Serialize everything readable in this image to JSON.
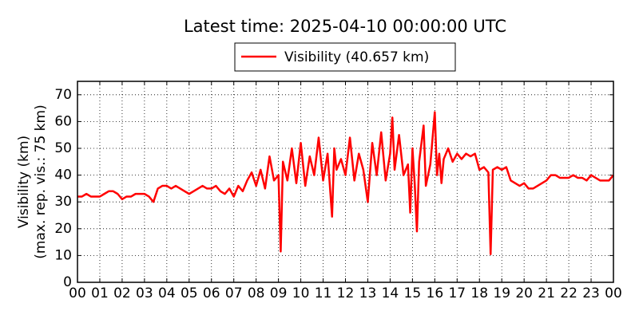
{
  "chart_data": {
    "type": "line",
    "title": "Latest time: 2025-04-10 00:00:00 UTC",
    "ylabel": [
      "Visibility (km)",
      "(max. rep. vis.: 75 km)"
    ],
    "series": [
      {
        "name": "Visibility (40.657 km)",
        "color": "#ff0000",
        "x": [
          0,
          0.2,
          0.4,
          0.6,
          0.8,
          1,
          1.2,
          1.4,
          1.6,
          1.8,
          2,
          2.2,
          2.4,
          2.6,
          2.8,
          3,
          3.2,
          3.4,
          3.6,
          3.8,
          4,
          4.2,
          4.4,
          4.6,
          4.8,
          5,
          5.2,
          5.4,
          5.6,
          5.8,
          6,
          6.2,
          6.4,
          6.6,
          6.8,
          7,
          7.2,
          7.4,
          7.6,
          7.8,
          8,
          8.2,
          8.4,
          8.6,
          8.8,
          9,
          9.1,
          9.2,
          9.4,
          9.6,
          9.8,
          10,
          10.2,
          10.4,
          10.6,
          10.8,
          11,
          11.2,
          11.4,
          11.5,
          11.6,
          11.8,
          12,
          12.2,
          12.4,
          12.6,
          12.8,
          13,
          13.2,
          13.4,
          13.6,
          13.8,
          14,
          14.1,
          14.2,
          14.4,
          14.6,
          14.8,
          14.9,
          15,
          15.1,
          15.2,
          15.3,
          15.5,
          15.6,
          15.8,
          16,
          16.1,
          16.2,
          16.3,
          16.4,
          16.6,
          16.8,
          17,
          17.2,
          17.4,
          17.6,
          17.8,
          18,
          18.2,
          18.4,
          18.5,
          18.6,
          18.8,
          19,
          19.2,
          19.4,
          19.6,
          19.8,
          20,
          20.2,
          20.4,
          20.6,
          20.8,
          21,
          21.2,
          21.4,
          21.6,
          21.8,
          22,
          22.2,
          22.4,
          22.6,
          22.8,
          23,
          23.2,
          23.4,
          23.6,
          23.8,
          24
        ],
        "values": [
          32,
          32,
          33,
          32,
          32,
          32,
          33,
          34,
          34,
          33,
          31,
          32,
          32,
          33,
          33,
          33,
          32,
          30,
          35,
          36,
          36,
          35,
          36,
          35,
          34,
          33,
          34,
          35,
          36,
          35,
          35,
          36,
          34,
          33,
          35,
          32,
          36,
          34,
          38,
          41,
          36,
          42,
          35,
          47,
          38,
          40,
          11.5,
          45,
          38,
          50,
          37,
          52,
          36,
          47,
          40,
          54,
          38,
          48,
          24.5,
          50,
          42,
          46,
          40,
          54,
          38,
          48,
          42,
          30,
          52,
          40,
          56,
          38,
          48,
          61.5,
          42,
          55,
          40,
          44,
          26,
          50,
          37,
          19,
          45,
          58.5,
          36,
          44,
          63.5,
          40,
          48,
          37,
          46,
          50,
          45,
          48,
          46,
          48,
          47,
          48,
          42,
          43,
          41,
          10.5,
          42,
          43,
          42,
          43,
          38,
          37,
          36,
          37,
          35,
          35,
          36,
          37,
          38,
          40,
          40,
          39,
          39,
          39,
          40,
          39,
          39,
          38,
          40,
          39,
          38,
          38,
          38,
          40
        ]
      }
    ],
    "xlim": [
      0,
      24
    ],
    "xticks": [
      {
        "value": 0,
        "label": "00"
      },
      {
        "value": 1,
        "label": "01"
      },
      {
        "value": 2,
        "label": "02"
      },
      {
        "value": 3,
        "label": "03"
      },
      {
        "value": 4,
        "label": "04"
      },
      {
        "value": 5,
        "label": "05"
      },
      {
        "value": 6,
        "label": "06"
      },
      {
        "value": 7,
        "label": "07"
      },
      {
        "value": 8,
        "label": "08"
      },
      {
        "value": 9,
        "label": "09"
      },
      {
        "value": 10,
        "label": "10"
      },
      {
        "value": 11,
        "label": "11"
      },
      {
        "value": 12,
        "label": "12"
      },
      {
        "value": 13,
        "label": "13"
      },
      {
        "value": 14,
        "label": "14"
      },
      {
        "value": 15,
        "label": "15"
      },
      {
        "value": 16,
        "label": "16"
      },
      {
        "value": 17,
        "label": "17"
      },
      {
        "value": 18,
        "label": "18"
      },
      {
        "value": 19,
        "label": "19"
      },
      {
        "value": 20,
        "label": "20"
      },
      {
        "value": 21,
        "label": "21"
      },
      {
        "value": 22,
        "label": "22"
      },
      {
        "value": 23,
        "label": "23"
      },
      {
        "value": 24,
        "label": "00"
      }
    ],
    "ylim": [
      0,
      75
    ],
    "yticks": [
      0,
      10,
      20,
      30,
      40,
      50,
      60,
      70
    ],
    "grid": true
  }
}
